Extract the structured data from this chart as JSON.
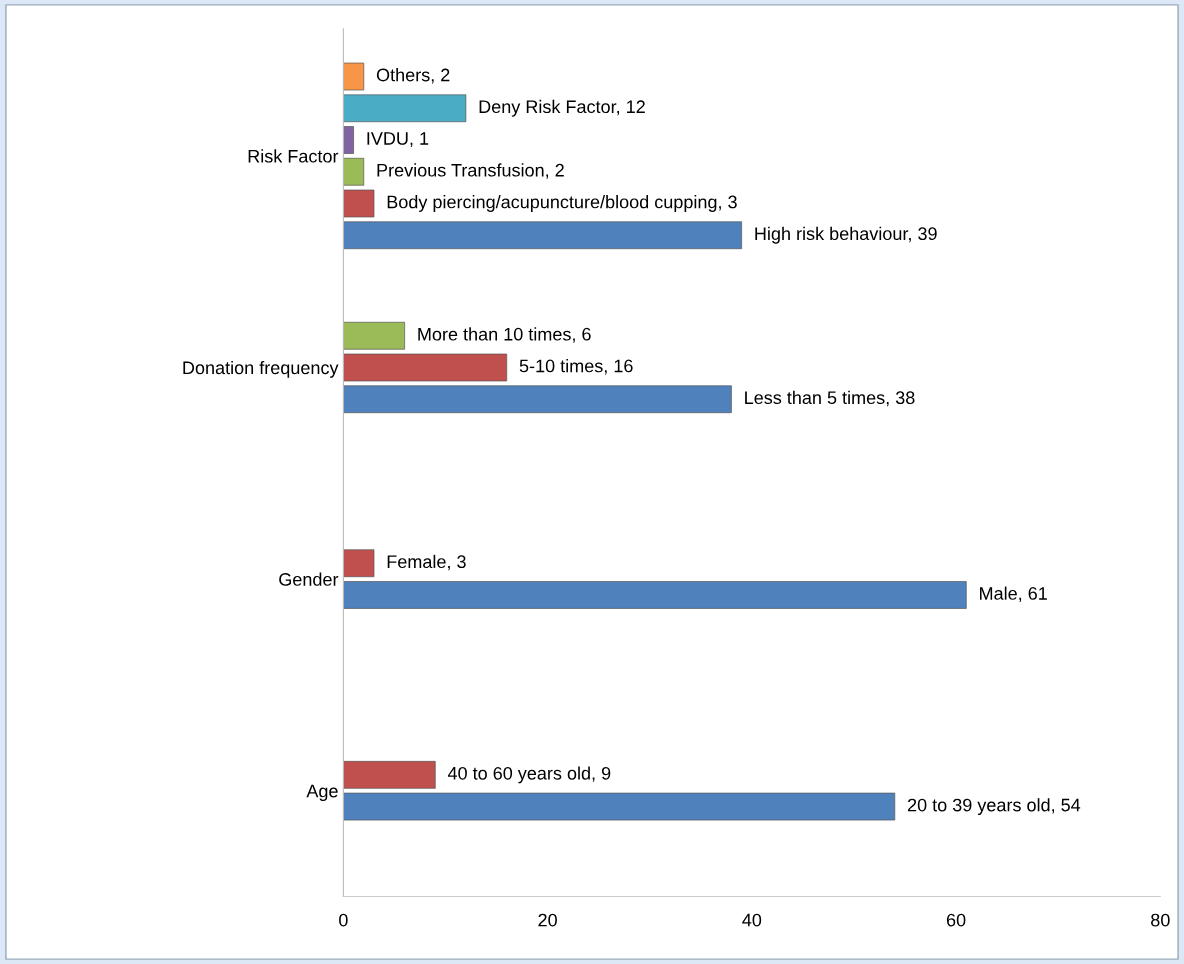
{
  "chart_data": {
    "type": "bar",
    "orientation": "horizontal",
    "categories": [
      "Risk Factor",
      "Donation frequency",
      "Gender",
      "Age"
    ],
    "series": [
      {
        "color": "#4f81bd",
        "values": [
          39,
          38,
          61,
          54
        ],
        "value_labels": [
          "High risk behaviour, 39",
          "Less than 5 times, 38",
          "Male, 61",
          "20 to 39 years old, 54"
        ]
      },
      {
        "color": "#c0504d",
        "values": [
          3,
          16,
          3,
          9
        ],
        "value_labels": [
          "Body piercing/acupuncture/blood cupping, 3",
          "5-10 times, 16",
          "Female, 3",
          "40 to 60 years old, 9"
        ]
      },
      {
        "color": "#9bbb59",
        "values": [
          2,
          6,
          null,
          null
        ],
        "value_labels": [
          "Previous Transfusion, 2",
          "More than 10 times, 6",
          null,
          null
        ]
      },
      {
        "color": "#8064a2",
        "values": [
          1,
          null,
          null,
          null
        ],
        "value_labels": [
          "IVDU, 1",
          null,
          null,
          null
        ]
      },
      {
        "color": "#4bacc6",
        "values": [
          12,
          null,
          null,
          null
        ],
        "value_labels": [
          "Deny Risk Factor, 12",
          null,
          null,
          null
        ]
      },
      {
        "color": "#f79646",
        "values": [
          2,
          null,
          null,
          null
        ],
        "value_labels": [
          "Others, 2",
          null,
          null,
          null
        ]
      }
    ],
    "xlim": [
      0,
      80
    ],
    "xticks": [
      0,
      20,
      40,
      60,
      80
    ],
    "grid": false,
    "legend": false
  }
}
